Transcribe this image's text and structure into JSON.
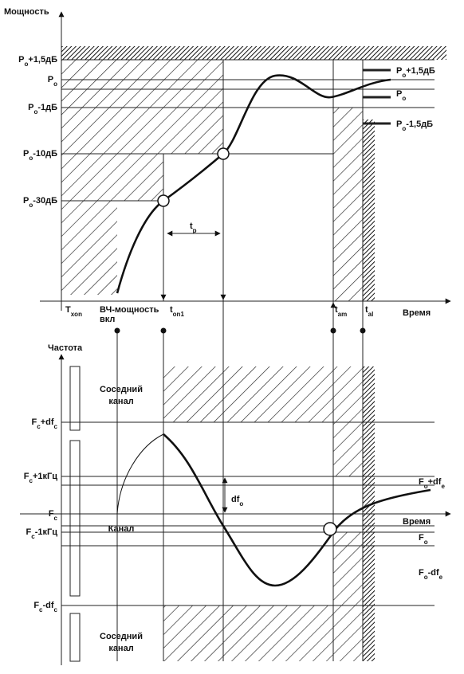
{
  "power": {
    "axis_label": "Мощность",
    "time_label": "Время",
    "levels": [
      [
        [
          "P",
          "o"
        ],
        [
          "+1,5дБ"
        ]
      ],
      [
        [
          "P",
          "o"
        ]
      ],
      [
        [
          "P",
          "o"
        ],
        [
          "-1дБ"
        ]
      ],
      [
        [
          "P",
          "o"
        ],
        [
          "-10дБ"
        ]
      ],
      [
        [
          "P",
          "o"
        ],
        [
          "-30дБ"
        ]
      ]
    ],
    "right_labels": [
      [
        [
          "P",
          "o"
        ],
        [
          "+1,5дБ"
        ]
      ],
      [
        [
          "P",
          "o"
        ]
      ],
      [
        [
          "P",
          "o"
        ],
        [
          "-1,5дБ"
        ]
      ]
    ],
    "t_p": [
      [
        "t",
        "р"
      ]
    ],
    "time_marks": [
      [
        [
          "T",
          "xon"
        ]
      ],
      [
        [
          "ВЧ-мощность"
        ]
      ],
      [
        [
          "вкл"
        ]
      ],
      [
        [
          "t",
          "on1"
        ]
      ],
      [
        [
          "t",
          "am"
        ]
      ],
      [
        [
          "t",
          "al"
        ]
      ]
    ]
  },
  "frequency": {
    "axis_label": "Частота",
    "time_label": "Время",
    "levels": [
      [
        [
          "F",
          "c"
        ],
        [
          "+df",
          "c"
        ]
      ],
      [
        [
          "F",
          "c"
        ],
        [
          "+1кГц"
        ]
      ],
      [
        [
          "F",
          "c"
        ]
      ],
      [
        [
          "F",
          "c"
        ],
        [
          "-1кГц"
        ]
      ],
      [
        [
          "F",
          "c"
        ],
        [
          "-df",
          "c"
        ]
      ]
    ],
    "right_labels": [
      [
        [
          "F",
          "o"
        ],
        [
          "+df",
          "e"
        ]
      ],
      [
        [
          "F",
          "o"
        ]
      ],
      [
        [
          "F",
          "o"
        ],
        [
          "-df",
          "e"
        ]
      ]
    ],
    "df_label": [
      [
        "df",
        "o"
      ]
    ],
    "channel_labels": [
      [
        [
          "Соседний"
        ]
      ],
      [
        [
          "канал"
        ]
      ],
      [
        [
          "Канал"
        ]
      ],
      [
        [
          "Соседний"
        ]
      ],
      [
        [
          "канал"
        ]
      ]
    ]
  }
}
